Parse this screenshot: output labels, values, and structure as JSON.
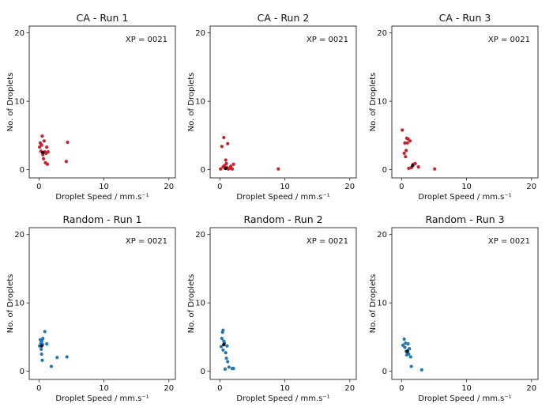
{
  "chart_data": [
    {
      "type": "scatter",
      "title": "CA - Run 1",
      "xlabel": "Droplet Speed / mm.s⁻¹",
      "ylabel": "No. of Droplets",
      "annotation": "XP = 0021",
      "xlim": [
        -1.5,
        21
      ],
      "ylim": [
        -1.2,
        21
      ],
      "xticks": [
        0,
        10,
        20
      ],
      "yticks": [
        0,
        10,
        20
      ],
      "color": "#cc1f2a",
      "highlight_color": "#111111",
      "points": [
        [
          0.1,
          3.3
        ],
        [
          0.2,
          3.9
        ],
        [
          0.3,
          2.7
        ],
        [
          0.4,
          3.6
        ],
        [
          0.5,
          4.9
        ],
        [
          0.6,
          2.2
        ],
        [
          0.7,
          1.6
        ],
        [
          0.8,
          4.2
        ],
        [
          0.9,
          2.6
        ],
        [
          1.0,
          1.0
        ],
        [
          1.1,
          2.4
        ],
        [
          1.2,
          3.3
        ],
        [
          1.3,
          0.8
        ],
        [
          1.4,
          2.6
        ],
        [
          4.2,
          1.2
        ],
        [
          4.4,
          4.0
        ]
      ],
      "highlight": [
        [
          0.6,
          2.5
        ]
      ]
    },
    {
      "type": "scatter",
      "title": "CA - Run 2",
      "xlabel": "Droplet Speed / mm.s⁻¹",
      "ylabel": "No. of Droplets",
      "annotation": "XP = 0021",
      "xlim": [
        -1.5,
        21
      ],
      "ylim": [
        -1.2,
        21
      ],
      "xticks": [
        0,
        10,
        20
      ],
      "yticks": [
        0,
        10,
        20
      ],
      "color": "#cc1f2a",
      "highlight_color": "#111111",
      "points": [
        [
          0.1,
          0.1
        ],
        [
          0.3,
          3.4
        ],
        [
          0.5,
          0.4
        ],
        [
          0.6,
          4.7
        ],
        [
          0.7,
          0.6
        ],
        [
          0.8,
          0.2
        ],
        [
          0.9,
          1.4
        ],
        [
          1.0,
          0.9
        ],
        [
          1.1,
          0.3
        ],
        [
          1.2,
          3.8
        ],
        [
          1.3,
          0.1
        ],
        [
          1.5,
          0.2
        ],
        [
          1.7,
          0.5
        ],
        [
          1.9,
          0.1
        ],
        [
          2.1,
          0.8
        ],
        [
          9.0,
          0.1
        ]
      ],
      "highlight": [
        [
          0.9,
          0.2
        ]
      ]
    },
    {
      "type": "scatter",
      "title": "CA - Run 3",
      "xlabel": "Droplet Speed / mm.s⁻¹",
      "ylabel": "No. of Droplets",
      "annotation": "XP = 0021",
      "xlim": [
        -1.5,
        21
      ],
      "ylim": [
        -1.2,
        21
      ],
      "xticks": [
        0,
        10,
        20
      ],
      "yticks": [
        0,
        10,
        20
      ],
      "color": "#cc1f2a",
      "highlight_color": "#111111",
      "points": [
        [
          0.1,
          5.8
        ],
        [
          0.4,
          2.4
        ],
        [
          0.5,
          3.9
        ],
        [
          0.6,
          1.9
        ],
        [
          0.7,
          2.8
        ],
        [
          0.8,
          4.6
        ],
        [
          0.9,
          3.9
        ],
        [
          1.0,
          4.5
        ],
        [
          1.1,
          0.2
        ],
        [
          1.3,
          4.2
        ],
        [
          1.5,
          0.3
        ],
        [
          1.8,
          0.8
        ],
        [
          2.1,
          0.9
        ],
        [
          2.6,
          0.4
        ],
        [
          5.1,
          0.1
        ]
      ],
      "highlight": [
        [
          1.7,
          0.6
        ]
      ]
    },
    {
      "type": "scatter",
      "title": "Random - Run 1",
      "xlabel": "Droplet Speed / mm.s⁻¹",
      "ylabel": "No. of Droplets",
      "annotation": "XP = 0021",
      "xlim": [
        -1.5,
        21
      ],
      "ylim": [
        -1.2,
        21
      ],
      "xticks": [
        0,
        10,
        20
      ],
      "yticks": [
        0,
        10,
        20
      ],
      "color": "#1f77b4",
      "highlight_color": "#111111",
      "points": [
        [
          0.1,
          3.7
        ],
        [
          0.2,
          4.6
        ],
        [
          0.3,
          4.1
        ],
        [
          0.35,
          3.2
        ],
        [
          0.4,
          2.5
        ],
        [
          0.45,
          4.4
        ],
        [
          0.5,
          1.6
        ],
        [
          0.55,
          3.9
        ],
        [
          0.6,
          4.8
        ],
        [
          0.9,
          5.8
        ],
        [
          1.2,
          4.0
        ],
        [
          1.9,
          0.7
        ],
        [
          2.8,
          2.0
        ],
        [
          4.3,
          2.1
        ]
      ],
      "highlight": [
        [
          0.4,
          3.7
        ]
      ]
    },
    {
      "type": "scatter",
      "title": "Random - Run 2",
      "xlabel": "Droplet Speed / mm.s⁻¹",
      "ylabel": "No. of Droplets",
      "annotation": "XP = 0021",
      "xlim": [
        -1.5,
        21
      ],
      "ylim": [
        -1.2,
        21
      ],
      "xticks": [
        0,
        10,
        20
      ],
      "yticks": [
        0,
        10,
        20
      ],
      "color": "#1f77b4",
      "highlight_color": "#111111",
      "points": [
        [
          0.2,
          3.6
        ],
        [
          0.3,
          4.8
        ],
        [
          0.4,
          5.7
        ],
        [
          0.5,
          6.0
        ],
        [
          0.5,
          3.1
        ],
        [
          0.6,
          4.4
        ],
        [
          0.7,
          4.1
        ],
        [
          0.8,
          0.3
        ],
        [
          0.9,
          2.7
        ],
        [
          1.0,
          1.9
        ],
        [
          1.1,
          3.7
        ],
        [
          1.2,
          1.4
        ],
        [
          1.4,
          0.6
        ],
        [
          1.9,
          0.4
        ],
        [
          2.1,
          0.4
        ]
      ],
      "highlight": [
        [
          0.6,
          3.9
        ]
      ]
    },
    {
      "type": "scatter",
      "title": "Random - Run 3",
      "xlabel": "Droplet Speed / mm.s⁻¹",
      "ylabel": "No. of Droplets",
      "annotation": "XP = 0021",
      "xlim": [
        -1.5,
        21
      ],
      "ylim": [
        -1.2,
        21
      ],
      "xticks": [
        0,
        10,
        20
      ],
      "yticks": [
        0,
        10,
        20
      ],
      "color": "#1f77b4",
      "highlight_color": "#111111",
      "points": [
        [
          0.2,
          3.8
        ],
        [
          0.4,
          4.7
        ],
        [
          0.5,
          3.5
        ],
        [
          0.6,
          4.1
        ],
        [
          0.7,
          2.9
        ],
        [
          0.8,
          2.4
        ],
        [
          0.9,
          3.0
        ],
        [
          1.0,
          4.0
        ],
        [
          1.1,
          2.5
        ],
        [
          1.2,
          3.3
        ],
        [
          1.4,
          2.1
        ],
        [
          1.5,
          0.7
        ],
        [
          3.1,
          0.2
        ]
      ],
      "highlight": [
        [
          0.9,
          2.9
        ]
      ]
    }
  ]
}
